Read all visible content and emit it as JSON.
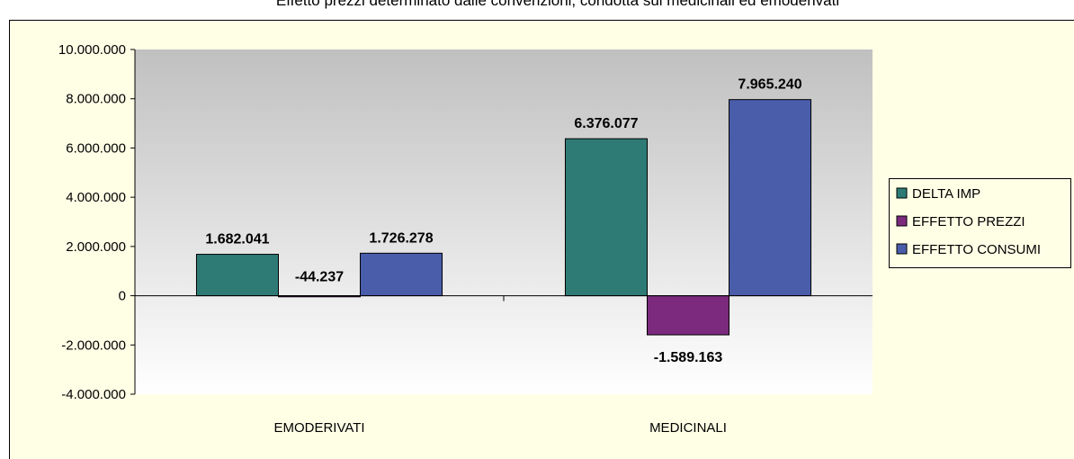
{
  "chart_data": {
    "type": "bar",
    "title": "Effetto prezzi determinato dalle convenzioni, condotta sui medicinali ed emoderivati",
    "categories": [
      "EMODERIVATI",
      "MEDICINALI"
    ],
    "series": [
      {
        "name": "DELTA IMP",
        "color": "#2e7b76",
        "values": [
          1682041,
          6376077
        ],
        "value_labels": [
          "1.682.041",
          "6.376.077"
        ]
      },
      {
        "name": "EFFETTO PREZZI",
        "color": "#7b2a7e",
        "values": [
          -44237,
          -1589163
        ],
        "value_labels": [
          "-44.237",
          "-1.589.163"
        ]
      },
      {
        "name": "EFFETTO CONSUMI",
        "color": "#4a5daa",
        "values": [
          1726278,
          7965240
        ],
        "value_labels": [
          "1.726.278",
          "7.965.240"
        ]
      }
    ],
    "ylim": [
      -4000000,
      10000000
    ],
    "yticks": [
      {
        "value": -4000000,
        "label": "-4.000.000"
      },
      {
        "value": -2000000,
        "label": "-2.000.000"
      },
      0,
      {
        "value": 2000000,
        "label": "2.000.000"
      },
      {
        "value": 4000000,
        "label": "4.000.000"
      },
      {
        "value": 6000000,
        "label": "6.000.000"
      },
      {
        "value": 8000000,
        "label": "8.000.000"
      },
      {
        "value": 10000000,
        "label": "10.000.000"
      }
    ],
    "grid": false,
    "legend": "right"
  }
}
